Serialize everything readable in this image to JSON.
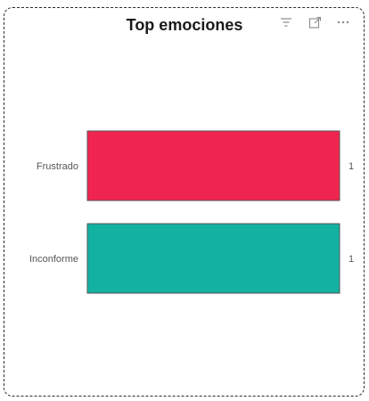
{
  "visual": {
    "title": "Top emociones"
  },
  "header_icons": [
    {
      "name": "filter-icon"
    },
    {
      "name": "focus-mode-icon"
    },
    {
      "name": "more-options-icon"
    }
  ],
  "colors": {
    "frustrado": "#F0254F",
    "inconforme": "#13B1A2",
    "bar_border": "#555555"
  },
  "chart_data": {
    "type": "bar",
    "orientation": "horizontal",
    "title": "Top emociones",
    "categories": [
      "Frustrado",
      "Inconforme"
    ],
    "values": [
      1,
      1
    ],
    "data_labels": [
      "1",
      "1"
    ],
    "xlim": [
      0,
      1
    ],
    "grid": false,
    "legend": "none"
  }
}
